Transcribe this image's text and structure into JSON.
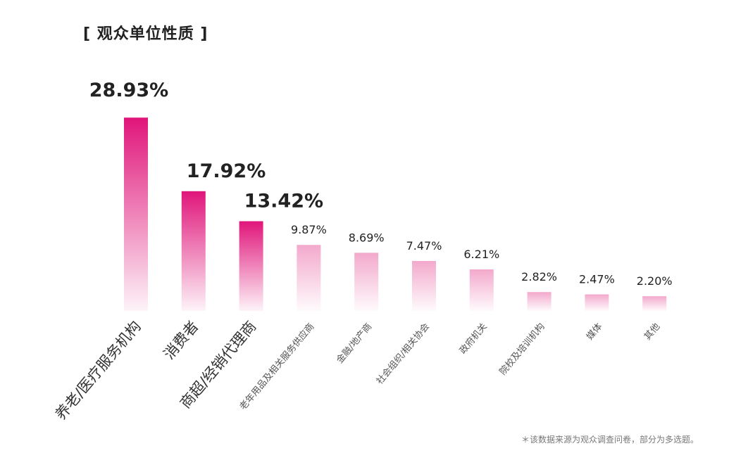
{
  "chart_data": {
    "type": "bar",
    "title": "[ 观众单位性质 ]",
    "categories": [
      "养老/医疗服务机构",
      "消费者",
      "商超/经销代理商",
      "老年用品及相关服务供应商",
      "金融/地产商",
      "社会组织/相关协会",
      "政府机关",
      "院校及培训机构",
      "媒体",
      "其他"
    ],
    "values": [
      28.93,
      17.92,
      13.42,
      9.87,
      8.69,
      7.47,
      6.21,
      2.82,
      2.47,
      2.2
    ],
    "value_labels": [
      "28.93%",
      "17.92%",
      "13.42%",
      "9.87%",
      "8.69%",
      "7.47%",
      "6.21%",
      "2.82%",
      "2.47%",
      "2.20%"
    ],
    "highlight_count": 3,
    "xlabel": "",
    "ylabel": "",
    "ylim": [
      0,
      30
    ],
    "colors": {
      "highlight": "#e0157a",
      "normal": "#f3a9cc",
      "text": "#222222"
    }
  },
  "footnote": "＊该数据来源为观众调查问卷，部分为多选题。"
}
